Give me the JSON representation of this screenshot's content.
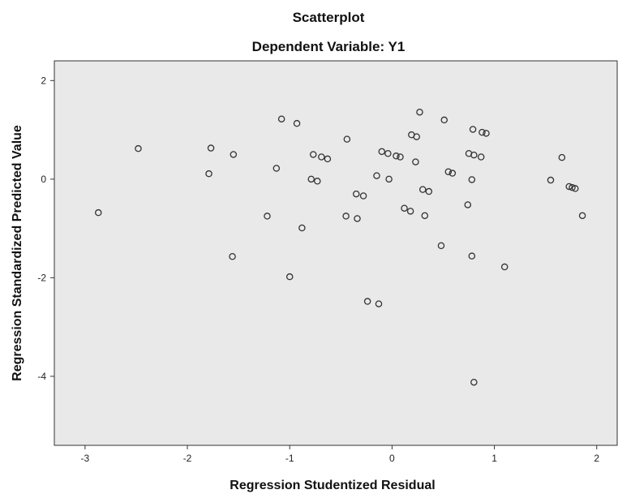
{
  "chart_data": {
    "type": "scatter",
    "title": "Scatterplot",
    "subtitle": "Dependent Variable: Y1",
    "xlabel": "Regression Studentized Residual",
    "ylabel": "Regression Standardized Predicted Value",
    "xlim": [
      -3.3,
      2.2
    ],
    "ylim": [
      -5.4,
      2.4
    ],
    "xticks": [
      -3,
      -2,
      -1,
      0,
      1,
      2
    ],
    "yticks": [
      2,
      0,
      -2,
      -4
    ],
    "xtick_labels": [
      "-3",
      "-2",
      "-1",
      "0",
      "1",
      "2"
    ],
    "ytick_labels": [
      "2",
      "0",
      "-2",
      "-4"
    ],
    "grid": false,
    "legend": "none",
    "colors": {
      "plot_background": "#e9e9e9",
      "marker_stroke": "#333333",
      "axis": "#333333"
    },
    "points": [
      {
        "x": -2.87,
        "y": -0.68
      },
      {
        "x": -2.48,
        "y": 0.62
      },
      {
        "x": -1.77,
        "y": 0.63
      },
      {
        "x": -1.79,
        "y": 0.11
      },
      {
        "x": -1.55,
        "y": 0.5
      },
      {
        "x": -1.56,
        "y": -1.57
      },
      {
        "x": -1.22,
        "y": -0.75
      },
      {
        "x": -1.08,
        "y": 1.22
      },
      {
        "x": -1.13,
        "y": 0.22
      },
      {
        "x": -0.93,
        "y": 1.13
      },
      {
        "x": -1.0,
        "y": -1.98
      },
      {
        "x": -0.88,
        "y": -0.99
      },
      {
        "x": -0.79,
        "y": 0.0
      },
      {
        "x": -0.77,
        "y": 0.5
      },
      {
        "x": -0.73,
        "y": -0.04
      },
      {
        "x": -0.69,
        "y": 0.45
      },
      {
        "x": -0.63,
        "y": 0.41
      },
      {
        "x": -0.44,
        "y": 0.81
      },
      {
        "x": -0.45,
        "y": -0.75
      },
      {
        "x": -0.35,
        "y": -0.3
      },
      {
        "x": -0.34,
        "y": -0.8
      },
      {
        "x": -0.28,
        "y": -0.34
      },
      {
        "x": -0.24,
        "y": -2.48
      },
      {
        "x": -0.15,
        "y": 0.07
      },
      {
        "x": -0.13,
        "y": -2.53
      },
      {
        "x": -0.1,
        "y": 0.56
      },
      {
        "x": -0.04,
        "y": 0.52
      },
      {
        "x": -0.03,
        "y": 0.0
      },
      {
        "x": 0.04,
        "y": 0.47
      },
      {
        "x": 0.08,
        "y": 0.45
      },
      {
        "x": 0.12,
        "y": -0.59
      },
      {
        "x": 0.19,
        "y": 0.9
      },
      {
        "x": 0.18,
        "y": -0.65
      },
      {
        "x": 0.24,
        "y": 0.86
      },
      {
        "x": 0.23,
        "y": 0.35
      },
      {
        "x": 0.27,
        "y": 1.36
      },
      {
        "x": 0.3,
        "y": -0.21
      },
      {
        "x": 0.32,
        "y": -0.74
      },
      {
        "x": 0.36,
        "y": -0.25
      },
      {
        "x": 0.48,
        "y": -1.35
      },
      {
        "x": 0.51,
        "y": 1.2
      },
      {
        "x": 0.55,
        "y": 0.15
      },
      {
        "x": 0.59,
        "y": 0.12
      },
      {
        "x": 0.74,
        "y": -0.52
      },
      {
        "x": 0.75,
        "y": 0.52
      },
      {
        "x": 0.79,
        "y": 1.01
      },
      {
        "x": 0.8,
        "y": 0.49
      },
      {
        "x": 0.78,
        "y": -0.01
      },
      {
        "x": 0.78,
        "y": -1.56
      },
      {
        "x": 0.8,
        "y": -4.12
      },
      {
        "x": 0.87,
        "y": 0.45
      },
      {
        "x": 0.88,
        "y": 0.95
      },
      {
        "x": 0.92,
        "y": 0.93
      },
      {
        "x": 1.1,
        "y": -1.78
      },
      {
        "x": 1.55,
        "y": -0.02
      },
      {
        "x": 1.66,
        "y": 0.44
      },
      {
        "x": 1.73,
        "y": -0.15
      },
      {
        "x": 1.76,
        "y": -0.17
      },
      {
        "x": 1.79,
        "y": -0.19
      },
      {
        "x": 1.86,
        "y": -0.74
      }
    ]
  }
}
